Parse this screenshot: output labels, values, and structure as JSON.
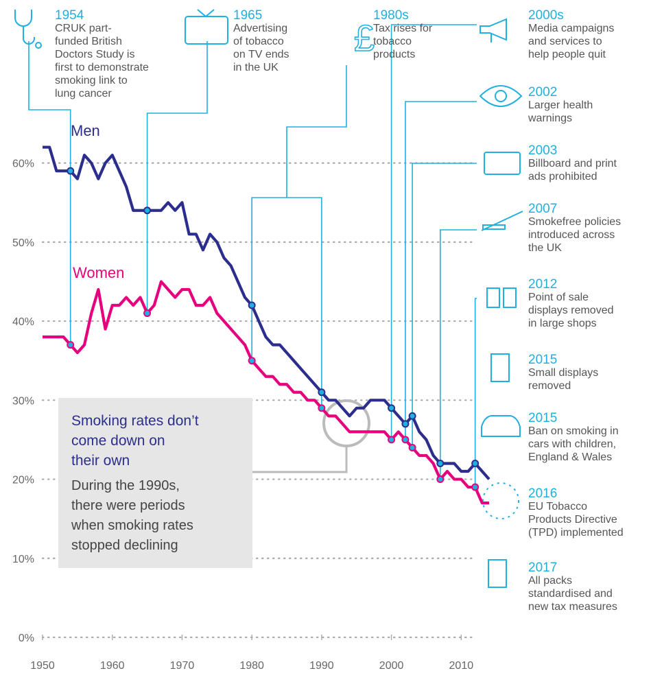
{
  "chart_data": {
    "type": "line",
    "x": [
      1950,
      1951,
      1952,
      1953,
      1954,
      1955,
      1956,
      1957,
      1958,
      1959,
      1960,
      1961,
      1962,
      1963,
      1964,
      1965,
      1966,
      1967,
      1968,
      1969,
      1970,
      1971,
      1972,
      1973,
      1974,
      1975,
      1976,
      1977,
      1978,
      1979,
      1980,
      1981,
      1982,
      1983,
      1984,
      1985,
      1986,
      1987,
      1988,
      1989,
      1990,
      1991,
      1992,
      1993,
      1994,
      1995,
      1996,
      1997,
      1998,
      1999,
      2000,
      2001,
      2002,
      2003,
      2004,
      2005,
      2006,
      2007,
      2008,
      2009,
      2010,
      2011,
      2012,
      2013,
      2014
    ],
    "series": [
      {
        "name": "Men",
        "color": "#2b2e8c",
        "values": [
          62,
          62,
          59,
          59,
          59,
          58,
          61,
          60,
          58,
          60,
          61,
          59,
          57,
          54,
          54,
          54,
          54,
          54,
          55,
          54,
          55,
          51,
          51,
          49,
          51,
          50,
          48,
          47,
          45,
          43,
          42,
          40,
          38,
          37,
          37,
          36,
          35,
          34,
          33,
          32,
          31,
          30,
          30,
          29,
          28,
          29,
          29,
          30,
          30,
          30,
          29,
          28,
          27,
          28,
          26,
          25,
          23,
          22,
          22,
          22,
          21,
          21,
          22,
          21,
          20
        ]
      },
      {
        "name": "Women",
        "color": "#e6007e",
        "values": [
          38,
          38,
          38,
          38,
          37,
          36,
          37,
          41,
          44,
          39,
          42,
          42,
          43,
          42,
          43,
          41,
          42,
          45,
          44,
          43,
          44,
          44,
          42,
          42,
          43,
          41,
          40,
          39,
          38,
          37,
          35,
          34,
          33,
          33,
          32,
          32,
          31,
          31,
          30,
          30,
          29,
          28,
          28,
          27,
          26,
          26,
          26,
          26,
          26,
          26,
          25,
          26,
          25,
          24,
          23,
          23,
          22,
          20,
          21,
          20,
          20,
          19,
          19,
          17,
          17
        ]
      }
    ],
    "xlim": [
      1950,
      2014
    ],
    "ylim": [
      0,
      65
    ],
    "xticks": [
      1950,
      1960,
      1970,
      1980,
      1990,
      2000,
      2010
    ],
    "yticks": [
      {
        "value": 0,
        "label": "0%"
      },
      {
        "value": 10,
        "label": "10%"
      },
      {
        "value": 20,
        "label": "20%"
      },
      {
        "value": 30,
        "label": "30%"
      },
      {
        "value": 40,
        "label": "40%"
      },
      {
        "value": 50,
        "label": "50%"
      },
      {
        "value": 60,
        "label": "60%"
      }
    ],
    "grid": true,
    "events": [
      {
        "label": "1954",
        "text": [
          "CRUK part-",
          "funded British",
          "Doctors Study is",
          "first to demonstrate",
          "smoking link to",
          "lung cancer"
        ]
      },
      {
        "label": "1965",
        "text": [
          "Advertising",
          "of tobacco",
          "on TV ends",
          "in the UK"
        ]
      },
      {
        "label": "1980s",
        "text": [
          "Tax rises for",
          "tobacco",
          "products"
        ]
      },
      {
        "label": "2000s",
        "text": [
          "Media campaigns",
          "and services to",
          "help people quit"
        ]
      },
      {
        "label": "2002",
        "text": [
          "Larger health",
          "warnings"
        ]
      },
      {
        "label": "2003",
        "text": [
          "Billboard and print",
          "ads prohibited"
        ]
      },
      {
        "label": "2007",
        "text": [
          "Smokefree policies",
          "introduced across",
          "the UK"
        ]
      },
      {
        "label": "2012",
        "text": [
          "Point of sale",
          "displays removed",
          "in large shops"
        ]
      },
      {
        "label": "2015",
        "text": [
          "Small displays",
          "removed"
        ]
      },
      {
        "label": "2015",
        "text": [
          "Ban on smoking in",
          "cars with children,",
          "England & Wales"
        ]
      },
      {
        "label": "2016",
        "text": [
          "EU Tobacco",
          "Products Directive",
          "(TPD) implemented"
        ]
      },
      {
        "label": "2017",
        "text": [
          "All packs",
          "standardised and",
          "new tax measures"
        ]
      }
    ],
    "callout": {
      "title": [
        "Smoking rates don’t",
        "come down on",
        "their own"
      ],
      "text": [
        "During the 1990s,",
        "there were periods",
        "when smoking rates",
        "stopped declining"
      ]
    }
  }
}
